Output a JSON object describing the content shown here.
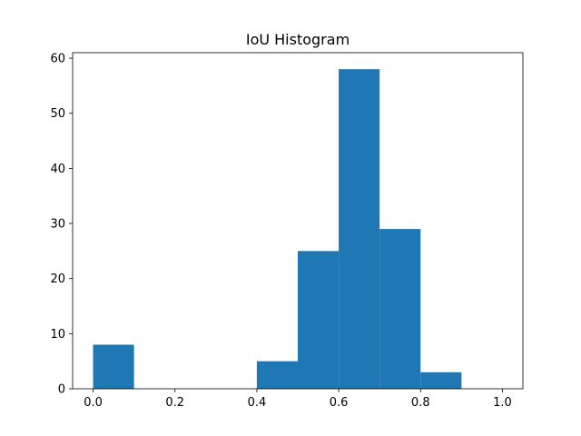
{
  "chart_data": {
    "type": "bar",
    "title": "IoU Histogram",
    "xlabel": "",
    "ylabel": "",
    "bins": [
      {
        "x0": 0.0,
        "x1": 0.1,
        "count": 8
      },
      {
        "x0": 0.1,
        "x1": 0.2,
        "count": 0
      },
      {
        "x0": 0.2,
        "x1": 0.3,
        "count": 0
      },
      {
        "x0": 0.3,
        "x1": 0.4,
        "count": 0
      },
      {
        "x0": 0.4,
        "x1": 0.5,
        "count": 5
      },
      {
        "x0": 0.5,
        "x1": 0.6,
        "count": 25
      },
      {
        "x0": 0.6,
        "x1": 0.7,
        "count": 58
      },
      {
        "x0": 0.7,
        "x1": 0.8,
        "count": 29
      },
      {
        "x0": 0.8,
        "x1": 0.9,
        "count": 3
      },
      {
        "x0": 0.9,
        "x1": 1.0,
        "count": 0
      }
    ],
    "xlim": [
      -0.05,
      1.05
    ],
    "ylim": [
      0,
      61
    ],
    "xticks": [
      0.0,
      0.2,
      0.4,
      0.6,
      0.8,
      1.0
    ],
    "xtick_labels": [
      "0.0",
      "0.2",
      "0.4",
      "0.6",
      "0.8",
      "1.0"
    ],
    "yticks": [
      0,
      10,
      20,
      30,
      40,
      50,
      60
    ],
    "ytick_labels": [
      "0",
      "10",
      "20",
      "30",
      "40",
      "50",
      "60"
    ],
    "bar_color": "#1f77b4",
    "grid": false,
    "legend": "none"
  }
}
